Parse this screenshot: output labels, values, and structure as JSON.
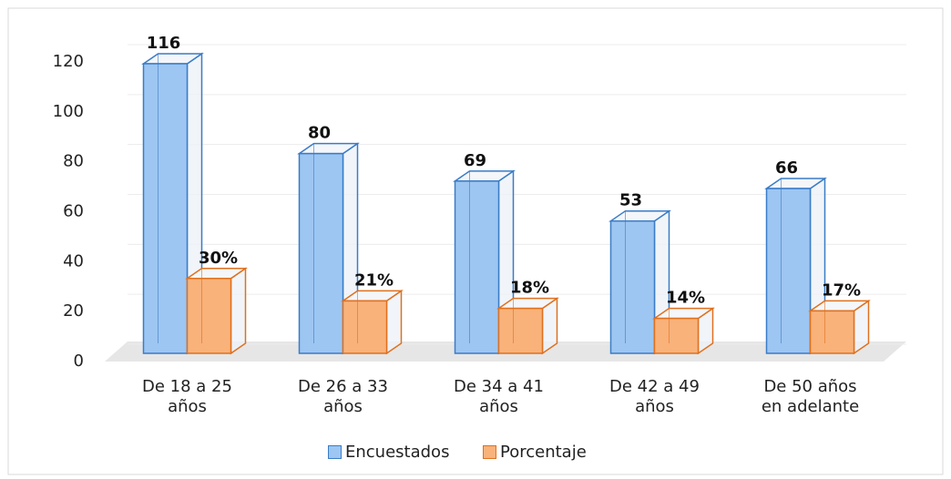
{
  "chart_data": {
    "type": "bar3d",
    "categories": [
      "De 18 a 25 años",
      "De 26 a 33 años",
      "De 34 a 41 años",
      "De 42 a 49 años",
      "De 50 años en adelante"
    ],
    "series": [
      {
        "name": "Encuestados",
        "color": "#9dc6f2",
        "values": [
          116,
          80,
          69,
          53,
          66
        ]
      },
      {
        "name": "Porcentaje",
        "color": "#f9b27a",
        "values": [
          30,
          21,
          18,
          14,
          17
        ],
        "value_labels": [
          "30%",
          "21%",
          "18%",
          "14%",
          "17%"
        ]
      }
    ],
    "ylim": [
      0,
      120
    ],
    "yticks": [
      0,
      20,
      40,
      60,
      80,
      100,
      120
    ],
    "grid": true,
    "legend": "bottom"
  }
}
